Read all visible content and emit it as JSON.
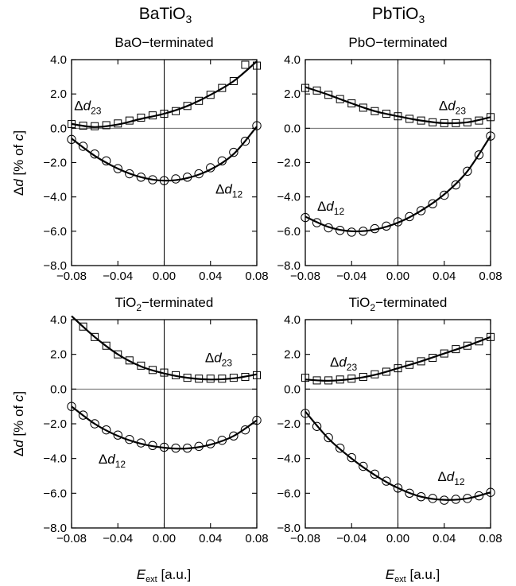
{
  "column_titles": [
    {
      "base": "BaTiO",
      "sub": "3"
    },
    {
      "base": "PbTiO",
      "sub": "3"
    }
  ],
  "axis_text": {
    "ylabel_delta": "Δ",
    "ylabel_d": "d",
    "ylabel_rest": "  [% of ",
    "ylabel_c": "c",
    "ylabel_close": "]",
    "xlabel_E": "E",
    "xlabel_sub": "ext",
    "xlabel_unit": "  [a.u.]"
  },
  "chart_data": [
    {
      "type": "scatter",
      "title": "BaO−terminated",
      "title_parts": {
        "base": "BaO−terminated",
        "sub": ""
      },
      "xlim": [
        -0.08,
        0.08
      ],
      "ylim": [
        -8,
        4
      ],
      "x_ticks": [
        "−0.08",
        "−0.04",
        "0.00",
        "0.04",
        "0.08"
      ],
      "y_ticks": [
        "4.0",
        "2.0",
        "0.0",
        "−2.0",
        "−4.0",
        "−6.0",
        "−8.0"
      ],
      "grid": false,
      "zero_lines": true,
      "series": [
        {
          "name": "Δd23",
          "label_parts": {
            "delta": "Δ",
            "d": "d",
            "sub": "23"
          },
          "marker": "square",
          "label_at": [
            -0.066,
            1.05
          ],
          "x": [
            -0.08,
            -0.07,
            -0.06,
            -0.05,
            -0.04,
            -0.03,
            -0.02,
            -0.01,
            0.0,
            0.01,
            0.02,
            0.03,
            0.04,
            0.05,
            0.06,
            0.07,
            0.08
          ],
          "y": [
            0.25,
            0.15,
            0.12,
            0.18,
            0.28,
            0.45,
            0.62,
            0.75,
            0.85,
            1.0,
            1.3,
            1.6,
            1.95,
            2.35,
            2.75,
            3.7,
            3.65
          ],
          "fit": [
            [
              -0.08,
              0.25
            ],
            [
              -0.06,
              0.07
            ],
            [
              -0.04,
              0.22
            ],
            [
              -0.02,
              0.55
            ],
            [
              0.0,
              0.85
            ],
            [
              0.02,
              1.3
            ],
            [
              0.04,
              1.95
            ],
            [
              0.06,
              2.75
            ],
            [
              0.08,
              3.9
            ]
          ]
        },
        {
          "name": "Δd12",
          "label_parts": {
            "delta": "Δ",
            "d": "d",
            "sub": "12"
          },
          "marker": "circle",
          "label_at": [
            0.056,
            -3.8
          ],
          "x": [
            -0.08,
            -0.07,
            -0.06,
            -0.05,
            -0.04,
            -0.03,
            -0.02,
            -0.01,
            0.0,
            0.01,
            0.02,
            0.03,
            0.04,
            0.05,
            0.06,
            0.07,
            0.08
          ],
          "y": [
            -0.65,
            -1.05,
            -1.5,
            -1.9,
            -2.35,
            -2.65,
            -2.85,
            -3.0,
            -3.05,
            -2.95,
            -2.85,
            -2.65,
            -2.3,
            -1.9,
            -1.4,
            -0.75,
            0.15
          ],
          "fit": [
            [
              -0.08,
              -0.6
            ],
            [
              -0.06,
              -1.6
            ],
            [
              -0.04,
              -2.35
            ],
            [
              -0.02,
              -2.85
            ],
            [
              0.0,
              -3.05
            ],
            [
              0.02,
              -2.9
            ],
            [
              0.04,
              -2.4
            ],
            [
              0.06,
              -1.5
            ],
            [
              0.08,
              0.1
            ]
          ]
        }
      ]
    },
    {
      "type": "scatter",
      "title": "PbO−terminated",
      "title_parts": {
        "base": "PbO−terminated",
        "sub": ""
      },
      "xlim": [
        -0.08,
        0.08
      ],
      "ylim": [
        -8,
        4
      ],
      "x_ticks": [
        "−0.08",
        "−0.04",
        "0.00",
        "0.04",
        "0.08"
      ],
      "y_ticks": [
        "4.0",
        "2.0",
        "0.0",
        "−2.0",
        "−4.0",
        "−6.0",
        "−8.0"
      ],
      "grid": false,
      "zero_lines": true,
      "series": [
        {
          "name": "Δd23",
          "label_parts": {
            "delta": "Δ",
            "d": "d",
            "sub": "23"
          },
          "marker": "square",
          "label_at": [
            0.047,
            1.05
          ],
          "x": [
            -0.08,
            -0.07,
            -0.06,
            -0.05,
            -0.04,
            -0.03,
            -0.02,
            -0.01,
            0.0,
            0.01,
            0.02,
            0.03,
            0.04,
            0.05,
            0.06,
            0.07,
            0.08
          ],
          "y": [
            2.35,
            2.2,
            1.95,
            1.7,
            1.45,
            1.2,
            1.0,
            0.85,
            0.7,
            0.55,
            0.45,
            0.35,
            0.3,
            0.3,
            0.35,
            0.45,
            0.65
          ],
          "fit": [
            [
              -0.08,
              2.4
            ],
            [
              -0.06,
              1.95
            ],
            [
              -0.04,
              1.45
            ],
            [
              -0.02,
              1.0
            ],
            [
              0.0,
              0.7
            ],
            [
              0.02,
              0.45
            ],
            [
              0.04,
              0.3
            ],
            [
              0.06,
              0.35
            ],
            [
              0.08,
              0.65
            ]
          ]
        },
        {
          "name": "Δd12",
          "label_parts": {
            "delta": "Δ",
            "d": "d",
            "sub": "12"
          },
          "marker": "circle",
          "label_at": [
            -0.058,
            -4.8
          ],
          "x": [
            -0.08,
            -0.07,
            -0.06,
            -0.05,
            -0.04,
            -0.03,
            -0.02,
            -0.01,
            0.0,
            0.01,
            0.02,
            0.03,
            0.04,
            0.05,
            0.06,
            0.07,
            0.08
          ],
          "y": [
            -5.2,
            -5.5,
            -5.8,
            -5.95,
            -6.05,
            -6.0,
            -5.85,
            -5.7,
            -5.45,
            -5.15,
            -4.8,
            -4.4,
            -3.9,
            -3.3,
            -2.5,
            -1.55,
            -0.45
          ],
          "fit": [
            [
              -0.08,
              -5.15
            ],
            [
              -0.06,
              -5.75
            ],
            [
              -0.04,
              -6.0
            ],
            [
              -0.02,
              -5.9
            ],
            [
              0.0,
              -5.5
            ],
            [
              0.02,
              -4.8
            ],
            [
              0.04,
              -3.85
            ],
            [
              0.06,
              -2.5
            ],
            [
              0.08,
              -0.45
            ]
          ]
        }
      ]
    },
    {
      "type": "scatter",
      "title": "TiO2−terminated",
      "title_parts": {
        "base": "TiO",
        "sub": "2",
        "rest": "−terminated"
      },
      "xlim": [
        -0.08,
        0.08
      ],
      "ylim": [
        -8,
        4
      ],
      "x_ticks": [
        "−0.08",
        "−0.04",
        "0.00",
        "0.04",
        "0.08"
      ],
      "y_ticks": [
        "4.0",
        "2.0",
        "0.0",
        "−2.0",
        "−4.0",
        "−6.0",
        "−8.0"
      ],
      "grid": false,
      "zero_lines": true,
      "series": [
        {
          "name": "Δd23",
          "label_parts": {
            "delta": "Δ",
            "d": "d",
            "sub": "23"
          },
          "marker": "square",
          "label_at": [
            0.047,
            1.55
          ],
          "x": [
            -0.07,
            -0.06,
            -0.05,
            -0.04,
            -0.03,
            -0.02,
            -0.01,
            0.0,
            0.01,
            0.02,
            0.03,
            0.04,
            0.05,
            0.06,
            0.07,
            0.08
          ],
          "y": [
            3.6,
            3.0,
            2.5,
            2.0,
            1.65,
            1.35,
            1.1,
            0.95,
            0.8,
            0.65,
            0.6,
            0.6,
            0.6,
            0.65,
            0.7,
            0.8
          ],
          "fit": [
            [
              -0.08,
              4.2
            ],
            [
              -0.06,
              3.0
            ],
            [
              -0.04,
              2.0
            ],
            [
              -0.02,
              1.3
            ],
            [
              0.0,
              0.9
            ],
            [
              0.02,
              0.65
            ],
            [
              0.04,
              0.55
            ],
            [
              0.06,
              0.62
            ],
            [
              0.08,
              0.85
            ]
          ]
        },
        {
          "name": "Δd12",
          "label_parts": {
            "delta": "Δ",
            "d": "d",
            "sub": "12"
          },
          "marker": "circle",
          "label_at": [
            -0.045,
            -4.3
          ],
          "x": [
            -0.08,
            -0.07,
            -0.06,
            -0.05,
            -0.04,
            -0.03,
            -0.02,
            -0.01,
            0.0,
            0.01,
            0.02,
            0.03,
            0.04,
            0.05,
            0.06,
            0.07,
            0.08
          ],
          "y": [
            -1.0,
            -1.5,
            -2.0,
            -2.35,
            -2.65,
            -2.9,
            -3.1,
            -3.25,
            -3.35,
            -3.4,
            -3.4,
            -3.3,
            -3.15,
            -2.95,
            -2.7,
            -2.35,
            -1.8
          ],
          "fit": [
            [
              -0.08,
              -1.0
            ],
            [
              -0.06,
              -2.0
            ],
            [
              -0.04,
              -2.7
            ],
            [
              -0.02,
              -3.15
            ],
            [
              0.0,
              -3.38
            ],
            [
              0.02,
              -3.42
            ],
            [
              0.04,
              -3.2
            ],
            [
              0.06,
              -2.7
            ],
            [
              0.08,
              -1.8
            ]
          ]
        }
      ]
    },
    {
      "type": "scatter",
      "title": "TiO2−terminated",
      "title_parts": {
        "base": "TiO",
        "sub": "2",
        "rest": "−terminated"
      },
      "xlim": [
        -0.08,
        0.08
      ],
      "ylim": [
        -8,
        4
      ],
      "x_ticks": [
        "−0.08",
        "−0.04",
        "0.00",
        "0.04",
        "0.08"
      ],
      "y_ticks": [
        "4.0",
        "2.0",
        "0.0",
        "−2.0",
        "−4.0",
        "−6.0",
        "−8.0"
      ],
      "grid": false,
      "zero_lines": true,
      "series": [
        {
          "name": "Δd23",
          "label_parts": {
            "delta": "Δ",
            "d": "d",
            "sub": "23"
          },
          "marker": "square",
          "label_at": [
            -0.047,
            1.3
          ],
          "x": [
            -0.08,
            -0.07,
            -0.06,
            -0.05,
            -0.04,
            -0.03,
            -0.02,
            -0.01,
            0.0,
            0.01,
            0.02,
            0.03,
            0.04,
            0.05,
            0.06,
            0.07,
            0.08
          ],
          "y": [
            0.65,
            0.5,
            0.5,
            0.55,
            0.6,
            0.7,
            0.85,
            1.0,
            1.2,
            1.4,
            1.6,
            1.8,
            2.05,
            2.3,
            2.5,
            2.75,
            3.0
          ],
          "fit": [
            [
              -0.08,
              0.55
            ],
            [
              -0.06,
              0.48
            ],
            [
              -0.04,
              0.58
            ],
            [
              -0.02,
              0.82
            ],
            [
              0.0,
              1.2
            ],
            [
              0.02,
              1.6
            ],
            [
              0.04,
              2.05
            ],
            [
              0.06,
              2.5
            ],
            [
              0.08,
              3.0
            ]
          ]
        },
        {
          "name": "Δd12",
          "label_parts": {
            "delta": "Δ",
            "d": "d",
            "sub": "12"
          },
          "marker": "circle",
          "label_at": [
            0.046,
            -5.3
          ],
          "x": [
            -0.08,
            -0.07,
            -0.06,
            -0.05,
            -0.04,
            -0.03,
            -0.02,
            -0.01,
            0.0,
            0.01,
            0.02,
            0.03,
            0.04,
            0.05,
            0.06,
            0.07,
            0.08
          ],
          "y": [
            -1.4,
            -2.15,
            -2.8,
            -3.4,
            -3.95,
            -4.45,
            -4.9,
            -5.3,
            -5.7,
            -6.0,
            -6.2,
            -6.3,
            -6.4,
            -6.35,
            -6.3,
            -6.15,
            -5.95
          ],
          "fit": [
            [
              -0.08,
              -1.3
            ],
            [
              -0.06,
              -2.85
            ],
            [
              -0.04,
              -4.0
            ],
            [
              -0.02,
              -4.95
            ],
            [
              0.0,
              -5.7
            ],
            [
              0.02,
              -6.2
            ],
            [
              0.04,
              -6.38
            ],
            [
              0.06,
              -6.3
            ],
            [
              0.08,
              -5.95
            ]
          ]
        }
      ]
    }
  ]
}
